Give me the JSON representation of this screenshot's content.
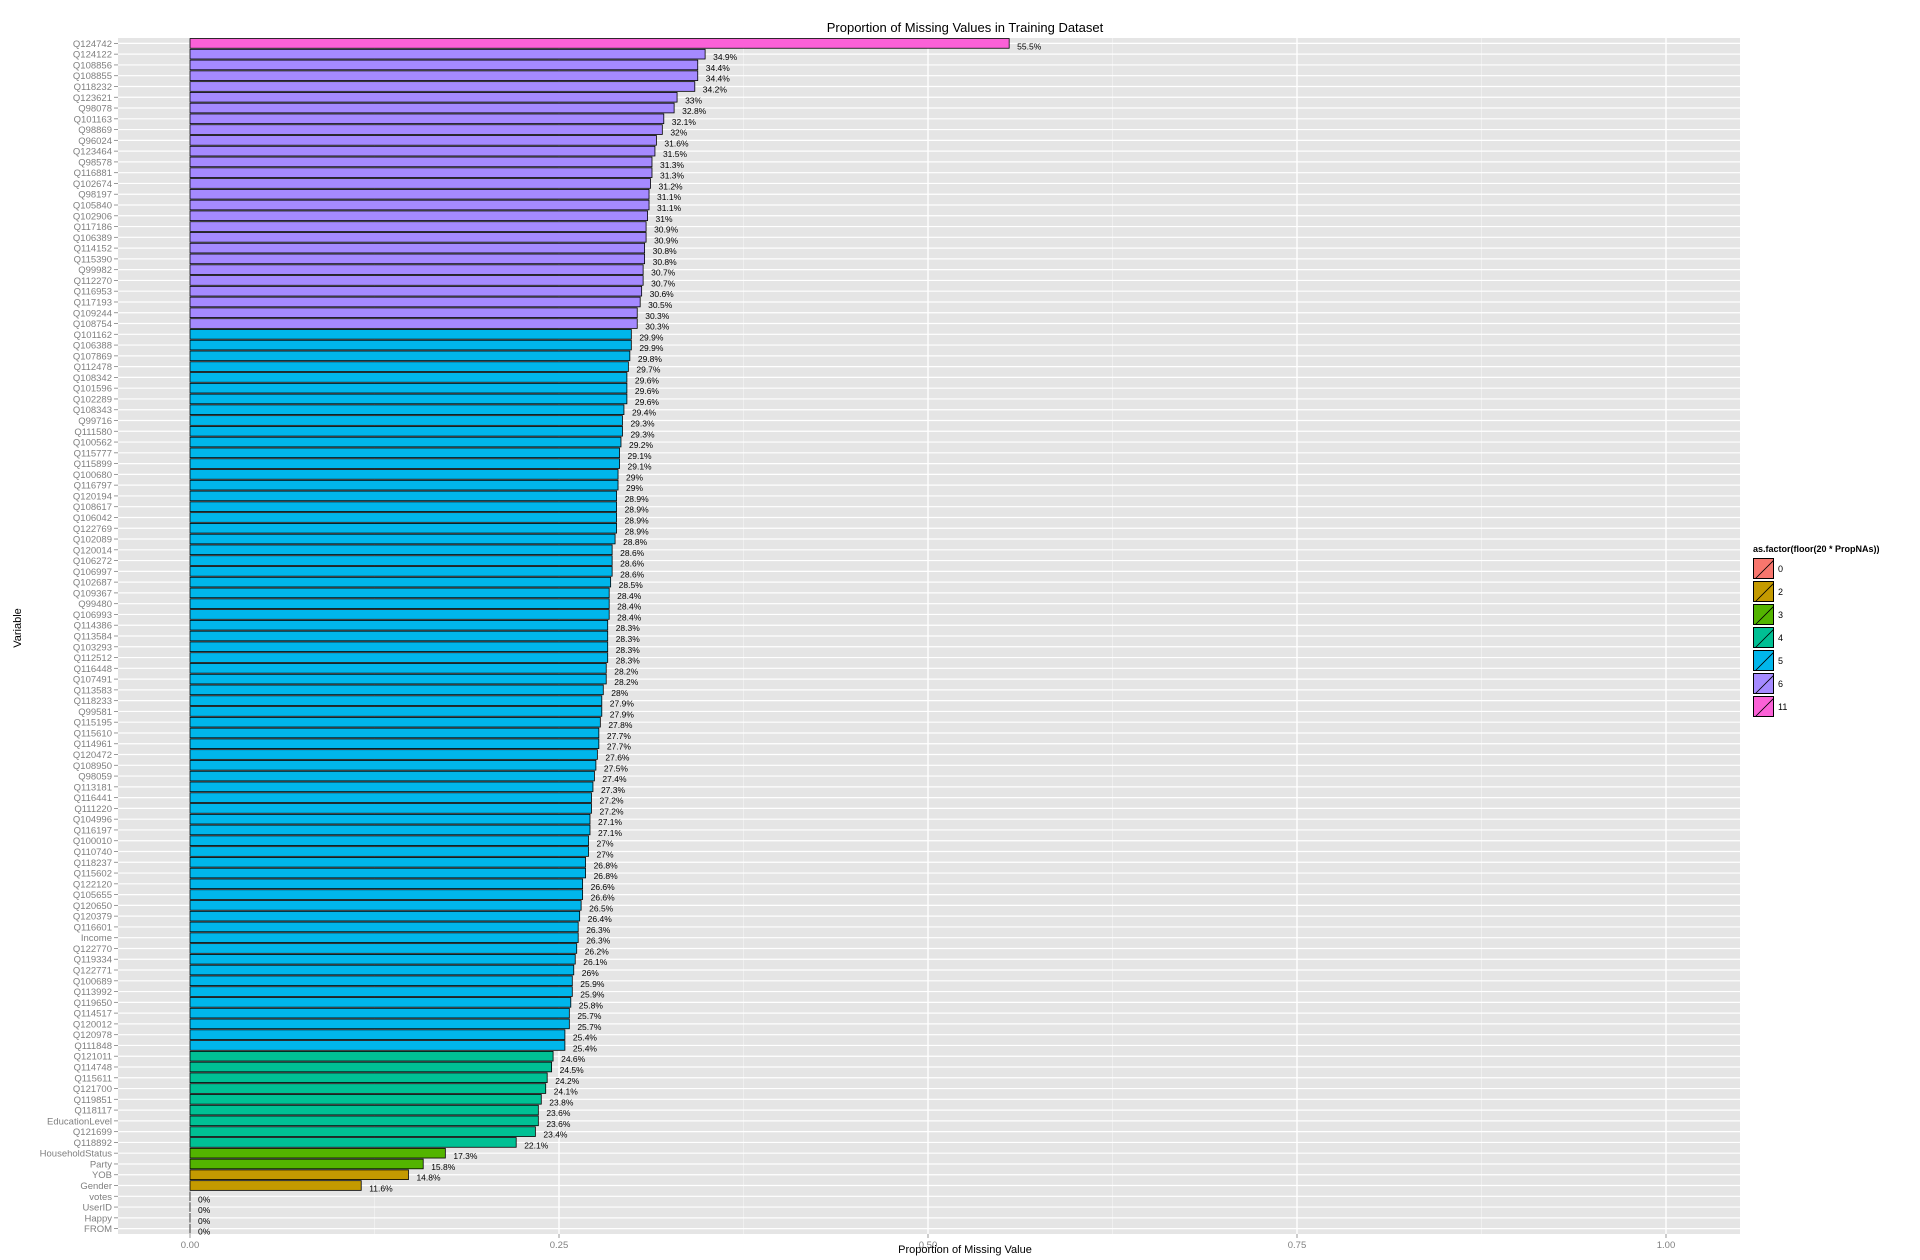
{
  "chart_data": {
    "type": "bar",
    "orientation": "horizontal",
    "title": "Proportion of Missing Values in Training Dataset",
    "xlabel": "Proportion of Missing Value",
    "ylabel": "Variable",
    "xlim": [
      0,
      1.05
    ],
    "xticks": [
      0,
      0.25,
      0.5,
      0.75,
      1
    ],
    "xtick_labels": [
      "0.00",
      "0.25",
      "0.50",
      "0.75",
      "1.00"
    ],
    "grid": true,
    "legend": {
      "title": "as.factor(floor(20 * PropNAs))",
      "placement": "right",
      "entries": [
        {
          "label": "0",
          "color": "#F8766D"
        },
        {
          "label": "2",
          "color": "#C49A00"
        },
        {
          "label": "3",
          "color": "#53B400"
        },
        {
          "label": "4",
          "color": "#00C094"
        },
        {
          "label": "5",
          "color": "#00B6EB"
        },
        {
          "label": "6",
          "color": "#A58AFF"
        },
        {
          "label": "11",
          "color": "#FB61D7"
        }
      ]
    },
    "categories": [
      "Q124742",
      "Q124122",
      "Q108856",
      "Q108855",
      "Q118232",
      "Q123621",
      "Q98078",
      "Q101163",
      "Q98869",
      "Q96024",
      "Q123464",
      "Q98578",
      "Q116881",
      "Q102674",
      "Q98197",
      "Q105840",
      "Q102906",
      "Q117186",
      "Q106389",
      "Q114152",
      "Q115390",
      "Q99982",
      "Q112270",
      "Q116953",
      "Q117193",
      "Q109244",
      "Q108754",
      "Q101162",
      "Q106388",
      "Q107869",
      "Q112478",
      "Q108342",
      "Q101596",
      "Q102289",
      "Q108343",
      "Q99716",
      "Q111580",
      "Q100562",
      "Q115777",
      "Q115899",
      "Q100680",
      "Q116797",
      "Q120194",
      "Q108617",
      "Q106042",
      "Q122769",
      "Q102089",
      "Q120014",
      "Q106272",
      "Q106997",
      "Q102687",
      "Q109367",
      "Q99480",
      "Q106993",
      "Q114386",
      "Q113584",
      "Q103293",
      "Q112512",
      "Q116448",
      "Q107491",
      "Q113583",
      "Q118233",
      "Q99581",
      "Q115195",
      "Q115610",
      "Q114961",
      "Q120472",
      "Q108950",
      "Q98059",
      "Q113181",
      "Q116441",
      "Q111220",
      "Q104996",
      "Q116197",
      "Q100010",
      "Q110740",
      "Q118237",
      "Q115602",
      "Q122120",
      "Q105655",
      "Q120650",
      "Q120379",
      "Q116601",
      "Income",
      "Q122770",
      "Q119334",
      "Q122771",
      "Q100689",
      "Q113992",
      "Q119650",
      "Q114517",
      "Q120012",
      "Q120978",
      "Q111848",
      "Q121011",
      "Q114748",
      "Q115611",
      "Q121700",
      "Q119851",
      "Q118117",
      "EducationLevel",
      "Q121699",
      "Q118892",
      "HouseholdStatus",
      "Party",
      "YOB",
      "Gender",
      "votes",
      "UserID",
      "Happy",
      "FROM"
    ],
    "values": [
      0.555,
      0.349,
      0.344,
      0.344,
      0.342,
      0.33,
      0.328,
      0.321,
      0.32,
      0.316,
      0.315,
      0.313,
      0.313,
      0.312,
      0.311,
      0.311,
      0.31,
      0.309,
      0.309,
      0.308,
      0.308,
      0.307,
      0.307,
      0.306,
      0.305,
      0.303,
      0.303,
      0.299,
      0.299,
      0.298,
      0.297,
      0.296,
      0.296,
      0.296,
      0.294,
      0.293,
      0.293,
      0.292,
      0.291,
      0.291,
      0.29,
      0.29,
      0.289,
      0.289,
      0.289,
      0.289,
      0.288,
      0.286,
      0.286,
      0.286,
      0.285,
      0.284,
      0.284,
      0.284,
      0.283,
      0.283,
      0.283,
      0.283,
      0.282,
      0.282,
      0.28,
      0.279,
      0.279,
      0.278,
      0.277,
      0.277,
      0.276,
      0.275,
      0.274,
      0.273,
      0.272,
      0.272,
      0.271,
      0.271,
      0.27,
      0.27,
      0.268,
      0.268,
      0.266,
      0.266,
      0.265,
      0.264,
      0.263,
      0.263,
      0.262,
      0.261,
      0.26,
      0.259,
      0.259,
      0.258,
      0.257,
      0.257,
      0.254,
      0.254,
      0.246,
      0.245,
      0.242,
      0.241,
      0.238,
      0.236,
      0.236,
      0.234,
      0.221,
      0.173,
      0.158,
      0.148,
      0.116,
      0,
      0,
      0,
      0
    ],
    "data_labels": [
      "55.5%",
      "34.9%",
      "34.4%",
      "34.4%",
      "34.2%",
      "33%",
      "32.8%",
      "32.1%",
      "32%",
      "31.6%",
      "31.5%",
      "31.3%",
      "31.3%",
      "31.2%",
      "31.1%",
      "31.1%",
      "31%",
      "30.9%",
      "30.9%",
      "30.8%",
      "30.8%",
      "30.7%",
      "30.7%",
      "30.6%",
      "30.5%",
      "30.3%",
      "30.3%",
      "29.9%",
      "29.9%",
      "29.8%",
      "29.7%",
      "29.6%",
      "29.6%",
      "29.6%",
      "29.4%",
      "29.3%",
      "29.3%",
      "29.2%",
      "29.1%",
      "29.1%",
      "29%",
      "29%",
      "28.9%",
      "28.9%",
      "28.9%",
      "28.9%",
      "28.8%",
      "28.6%",
      "28.6%",
      "28.6%",
      "28.5%",
      "28.4%",
      "28.4%",
      "28.4%",
      "28.3%",
      "28.3%",
      "28.3%",
      "28.3%",
      "28.2%",
      "28.2%",
      "28%",
      "27.9%",
      "27.9%",
      "27.8%",
      "27.7%",
      "27.7%",
      "27.6%",
      "27.5%",
      "27.4%",
      "27.3%",
      "27.2%",
      "27.2%",
      "27.1%",
      "27.1%",
      "27%",
      "27%",
      "26.8%",
      "26.8%",
      "26.6%",
      "26.6%",
      "26.5%",
      "26.4%",
      "26.3%",
      "26.3%",
      "26.2%",
      "26.1%",
      "26%",
      "25.9%",
      "25.9%",
      "25.8%",
      "25.7%",
      "25.7%",
      "25.4%",
      "25.4%",
      "24.6%",
      "24.5%",
      "24.2%",
      "24.1%",
      "23.8%",
      "23.6%",
      "23.6%",
      "23.4%",
      "22.1%",
      "17.3%",
      "15.8%",
      "14.8%",
      "11.6%",
      "0%",
      "0%",
      "0%",
      "0%"
    ],
    "groups": [
      "11",
      "6",
      "6",
      "6",
      "6",
      "6",
      "6",
      "6",
      "6",
      "6",
      "6",
      "6",
      "6",
      "6",
      "6",
      "6",
      "6",
      "6",
      "6",
      "6",
      "6",
      "6",
      "6",
      "6",
      "6",
      "6",
      "6",
      "5",
      "5",
      "5",
      "5",
      "5",
      "5",
      "5",
      "5",
      "5",
      "5",
      "5",
      "5",
      "5",
      "5",
      "5",
      "5",
      "5",
      "5",
      "5",
      "5",
      "5",
      "5",
      "5",
      "5",
      "5",
      "5",
      "5",
      "5",
      "5",
      "5",
      "5",
      "5",
      "5",
      "5",
      "5",
      "5",
      "5",
      "5",
      "5",
      "5",
      "5",
      "5",
      "5",
      "5",
      "5",
      "5",
      "5",
      "5",
      "5",
      "5",
      "5",
      "5",
      "5",
      "5",
      "5",
      "5",
      "5",
      "5",
      "5",
      "5",
      "5",
      "5",
      "5",
      "5",
      "5",
      "5",
      "5",
      "4",
      "4",
      "4",
      "4",
      "4",
      "4",
      "4",
      "4",
      "4",
      "3",
      "3",
      "2",
      "2",
      "0",
      "0",
      "0",
      "0"
    ]
  },
  "colors": {
    "panel_background": "#E5E5E5",
    "grid_major": "#FFFFFF",
    "grid_minor": "#F2F2F2",
    "axis_text": "#7F7F7F",
    "bar_outline": "#000000"
  }
}
